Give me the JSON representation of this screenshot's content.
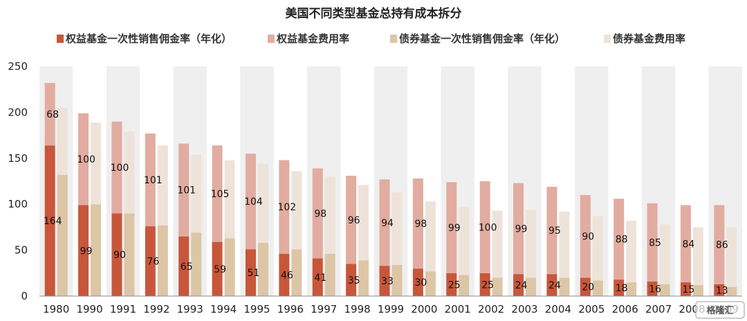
{
  "chart_data": {
    "type": "bar",
    "title": "美国不同类型基金总持有成本拆分",
    "categories": [
      "1980",
      "1990",
      "1991",
      "1992",
      "1993",
      "1994",
      "1995",
      "1996",
      "1997",
      "1998",
      "1999",
      "2000",
      "2001",
      "2002",
      "2003",
      "2004",
      "2005",
      "2006",
      "2007",
      "2008",
      "2009"
    ],
    "ylim": [
      0,
      250
    ],
    "yticks": [
      "0",
      "50",
      "100",
      "150",
      "200",
      "250"
    ],
    "grid": false,
    "stacked_groups": [
      "equity",
      "bond"
    ],
    "series": [
      {
        "name": "权益基金一次性销售佣金率（年化）",
        "group": "equity",
        "color": "#c8563a",
        "values": [
          164,
          99,
          90,
          76,
          65,
          59,
          51,
          46,
          41,
          35,
          33,
          30,
          25,
          25,
          24,
          24,
          20,
          18,
          16,
          15,
          13
        ]
      },
      {
        "name": "权益基金费用率",
        "group": "equity",
        "color": "#e2aca0",
        "values": [
          68,
          100,
          100,
          101,
          101,
          105,
          104,
          102,
          98,
          96,
          94,
          98,
          99,
          100,
          99,
          95,
          90,
          88,
          85,
          84,
          86
        ]
      },
      {
        "name": "债券基金一次性销售佣金率（年化）",
        "group": "bond",
        "color": "#dcc6a6",
        "values": [
          132,
          100,
          90,
          77,
          69,
          63,
          58,
          51,
          46,
          39,
          34,
          27,
          23,
          20,
          20,
          20,
          17,
          15,
          13,
          12,
          10
        ]
      },
      {
        "name": "债券基金费用率",
        "group": "bond",
        "color": "#eee3d9",
        "values": [
          73,
          89,
          89,
          87,
          85,
          85,
          86,
          85,
          84,
          82,
          79,
          76,
          74,
          73,
          74,
          72,
          70,
          67,
          65,
          63,
          65
        ]
      }
    ],
    "labelled_series": [
      "权益基金一次性销售佣金率（年化）",
      "权益基金费用率"
    ],
    "legend_position": "top",
    "shaded_bands": "alternating"
  },
  "watermark": "格隆汇"
}
